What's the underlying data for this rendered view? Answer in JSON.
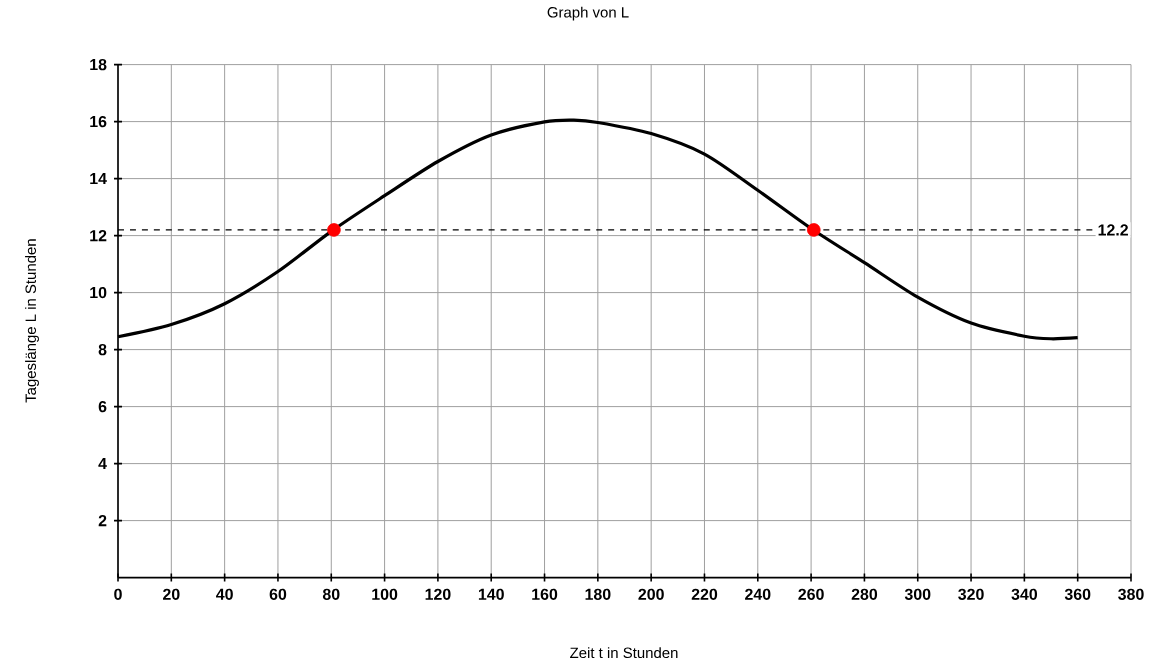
{
  "chart_data": {
    "type": "line",
    "title": "Graph von L",
    "xlabel": "Zeit t in Stunden",
    "ylabel": "Tageslänge L in Stunden",
    "xlim": [
      0,
      380
    ],
    "ylim": [
      0,
      18
    ],
    "xticks": [
      0,
      20,
      40,
      60,
      80,
      100,
      120,
      140,
      160,
      180,
      200,
      220,
      240,
      260,
      280,
      300,
      320,
      340,
      360,
      380
    ],
    "yticks": [
      2,
      4,
      6,
      8,
      10,
      12,
      14,
      16,
      18
    ],
    "grid": true,
    "series": [
      {
        "color": "#000000",
        "marker": "none",
        "line_style": "solid",
        "x": [
          0,
          20,
          40,
          60,
          80,
          100,
          120,
          140,
          160,
          171,
          180,
          200,
          220,
          240,
          260,
          280,
          300,
          320,
          340,
          350,
          360
        ],
        "values": [
          8.45,
          8.88,
          9.61,
          10.74,
          12.15,
          13.4,
          14.6,
          15.53,
          15.99,
          16.05,
          15.97,
          15.58,
          14.86,
          13.59,
          12.25,
          11.05,
          9.84,
          8.93,
          8.47,
          8.38,
          8.42
        ]
      },
      {
        "type": "scatter",
        "color": "#ff0000",
        "marker": "circle",
        "x": [
          81,
          261
        ],
        "values": [
          12.2,
          12.2
        ]
      }
    ],
    "ref_lines": [
      {
        "axis": "y",
        "value": 12.2,
        "label": "12.2",
        "line_style": "dashed",
        "color": "#000000"
      }
    ]
  }
}
